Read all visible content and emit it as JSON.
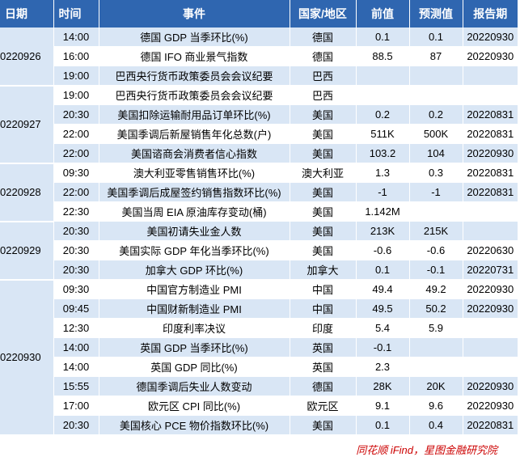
{
  "headers": [
    "日期",
    "时间",
    "事件",
    "国家/地区",
    "前值",
    "预测值",
    "报告期"
  ],
  "groups": [
    {
      "date": "0220926",
      "rows": [
        {
          "time": "14:00",
          "event": "德国 GDP 当季环比(%)",
          "country": "德国",
          "prev": "0.1",
          "forecast": "0.1",
          "period": "20220930"
        },
        {
          "time": "16:00",
          "event": "德国 IFO 商业景气指数",
          "country": "德国",
          "prev": "88.5",
          "forecast": "87",
          "period": "20220930"
        },
        {
          "time": "19:00",
          "event": "巴西央行货币政策委员会会议纪要",
          "country": "巴西",
          "prev": "",
          "forecast": "",
          "period": ""
        }
      ]
    },
    {
      "date": "0220927",
      "rows": [
        {
          "time": "19:00",
          "event": "巴西央行货币政策委员会会议纪要",
          "country": "巴西",
          "prev": "",
          "forecast": "",
          "period": ""
        },
        {
          "time": "20:30",
          "event": "美国扣除运输耐用品订单环比(%)",
          "country": "美国",
          "prev": "0.2",
          "forecast": "0.2",
          "period": "20220831"
        },
        {
          "time": "22:00",
          "event": "美国季调后新屋销售年化总数(户)",
          "country": "美国",
          "prev": "511K",
          "forecast": "500K",
          "period": "20220831"
        },
        {
          "time": "22:00",
          "event": "美国谘商会消费者信心指数",
          "country": "美国",
          "prev": "103.2",
          "forecast": "104",
          "period": "20220930"
        }
      ]
    },
    {
      "date": "0220928",
      "rows": [
        {
          "time": "09:30",
          "event": "澳大利亚零售销售环比(%)",
          "country": "澳大利亚",
          "prev": "1.3",
          "forecast": "0.3",
          "period": "20220831"
        },
        {
          "time": "22:00",
          "event": "美国季调后成屋签约销售指数环比(%)",
          "country": "美国",
          "prev": "-1",
          "forecast": "-1",
          "period": "20220831"
        },
        {
          "time": "22:30",
          "event": "美国当周 EIA 原油库存变动(桶)",
          "country": "美国",
          "prev": "1.142M",
          "forecast": "",
          "period": ""
        }
      ]
    },
    {
      "date": "0220929",
      "rows": [
        {
          "time": "20:30",
          "event": "美国初请失业金人数",
          "country": "美国",
          "prev": "213K",
          "forecast": "215K",
          "period": ""
        },
        {
          "time": "20:30",
          "event": "美国实际 GDP 年化当季环比(%)",
          "country": "美国",
          "prev": "-0.6",
          "forecast": "-0.6",
          "period": "20220630"
        },
        {
          "time": "20:30",
          "event": "加拿大 GDP 环比(%)",
          "country": "加拿大",
          "prev": "0.1",
          "forecast": "-0.1",
          "period": "20220731"
        }
      ]
    },
    {
      "date": "0220930",
      "rows": [
        {
          "time": "09:30",
          "event": "中国官方制造业 PMI",
          "country": "中国",
          "prev": "49.4",
          "forecast": "49.2",
          "period": "20220930"
        },
        {
          "time": "09:45",
          "event": "中国财新制造业 PMI",
          "country": "中国",
          "prev": "49.5",
          "forecast": "50.2",
          "period": "20220930"
        },
        {
          "time": "12:30",
          "event": "印度利率决议",
          "country": "印度",
          "prev": "5.4",
          "forecast": "5.9",
          "period": ""
        },
        {
          "time": "14:00",
          "event": "英国 GDP 当季环比(%)",
          "country": "英国",
          "prev": "-0.1",
          "forecast": "",
          "period": ""
        },
        {
          "time": "14:00",
          "event": "英国 GDP 同比(%)",
          "country": "英国",
          "prev": "2.3",
          "forecast": "",
          "period": ""
        },
        {
          "time": "15:55",
          "event": "德国季调后失业人数变动",
          "country": "德国",
          "prev": "28K",
          "forecast": "20K",
          "period": "20220930"
        },
        {
          "time": "17:00",
          "event": "欧元区 CPI 同比(%)",
          "country": "欧元区",
          "prev": "9.1",
          "forecast": "9.6",
          "period": "20220930"
        },
        {
          "time": "20:30",
          "event": "美国核心 PCE 物价指数环比(%)",
          "country": "美国",
          "prev": "0.1",
          "forecast": "0.4",
          "period": "20220831"
        }
      ]
    }
  ],
  "source": "同花顺 iFind，星图金融研究院",
  "colors": {
    "header_bg": "#2f66b0",
    "row_shade": "#d9e6f5",
    "source_text": "#cc0000"
  }
}
